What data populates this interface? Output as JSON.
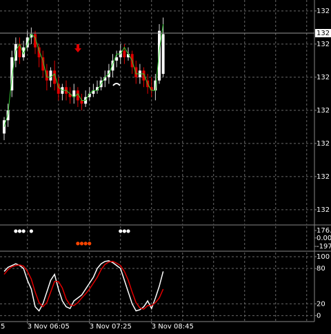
{
  "chart_data": [
    {
      "type": "candlestick",
      "ylim": [
        132.056,
        132.733
      ],
      "yticks": [
        {
          "value": 132.7,
          "label": "132"
        },
        {
          "value": 132.6,
          "label": "132"
        },
        {
          "value": 132.5,
          "label": "132"
        },
        {
          "value": 132.4,
          "label": "132"
        },
        {
          "value": 132.3,
          "label": "132"
        },
        {
          "value": 132.2,
          "label": "132"
        },
        {
          "value": 132.1,
          "label": "132"
        }
      ],
      "last_price": {
        "value": 132.633,
        "label": "132"
      },
      "xticks": [
        {
          "value": -10,
          "label": "5"
        },
        {
          "value": 6,
          "label": "3 Nov 06:05"
        },
        {
          "value": 22,
          "label": "3 Nov 07:25"
        },
        {
          "value": 38,
          "label": "3 Nov 08:45"
        }
      ],
      "grid": true,
      "up_color": "#ffffff",
      "down_color": "#e00000",
      "open": [
        132.33,
        132.37,
        132.46,
        132.55,
        132.6,
        132.56,
        132.59,
        132.62,
        132.63,
        132.59,
        132.56,
        132.52,
        132.49,
        132.52,
        132.48,
        132.45,
        132.47,
        132.45,
        132.44,
        132.46,
        132.43,
        132.42,
        132.44,
        132.45,
        132.46,
        132.47,
        132.49,
        132.5,
        132.52,
        132.55,
        132.56,
        132.58,
        132.56,
        132.57,
        132.53,
        132.5,
        132.52,
        132.49,
        132.47,
        132.46,
        132.49,
        132.51
      ],
      "high": [
        132.38,
        132.42,
        132.58,
        132.62,
        132.62,
        132.61,
        132.64,
        132.65,
        132.64,
        132.6,
        132.58,
        132.54,
        132.53,
        132.55,
        132.5,
        132.48,
        132.49,
        132.47,
        132.48,
        132.47,
        132.45,
        132.46,
        132.47,
        132.48,
        132.49,
        132.5,
        132.52,
        132.54,
        132.57,
        132.58,
        132.6,
        132.6,
        132.59,
        132.58,
        132.55,
        132.54,
        132.53,
        132.51,
        132.5,
        132.51,
        132.66,
        132.68
      ],
      "low": [
        132.31,
        132.35,
        132.44,
        132.53,
        132.54,
        132.55,
        132.58,
        132.6,
        132.57,
        132.53,
        132.5,
        132.46,
        132.47,
        132.46,
        132.43,
        132.43,
        132.43,
        132.42,
        132.42,
        132.41,
        132.4,
        132.41,
        132.43,
        132.44,
        132.45,
        132.46,
        132.47,
        132.48,
        132.5,
        132.53,
        132.54,
        132.54,
        132.55,
        132.51,
        132.48,
        132.48,
        132.47,
        132.45,
        132.44,
        132.43,
        132.48,
        132.5
      ],
      "close": [
        132.37,
        132.4,
        132.56,
        132.6,
        132.56,
        132.59,
        132.62,
        132.63,
        132.59,
        132.56,
        132.52,
        132.49,
        132.52,
        132.48,
        132.45,
        132.47,
        132.45,
        132.44,
        132.46,
        132.43,
        132.42,
        132.44,
        132.45,
        132.46,
        132.47,
        132.49,
        132.5,
        132.52,
        132.55,
        132.56,
        132.58,
        132.56,
        132.57,
        132.53,
        132.5,
        132.52,
        132.49,
        132.47,
        132.46,
        132.49,
        132.64,
        132.63
      ],
      "overlay": {
        "color": "#33cc33",
        "values": [
          132.35,
          132.39,
          132.5,
          132.58,
          132.6,
          132.57,
          132.6,
          132.63,
          132.62,
          132.58,
          132.55,
          132.5,
          132.5,
          132.51,
          132.47,
          132.46,
          132.46,
          132.45,
          132.44,
          132.45,
          132.43,
          132.43,
          132.45,
          132.46,
          132.46,
          132.48,
          132.5,
          132.51,
          132.54,
          132.57,
          132.57,
          132.59,
          132.57,
          132.55,
          132.51,
          132.51,
          132.51,
          132.48,
          132.46,
          132.46,
          132.58,
          132.66
        ]
      }
    },
    {
      "type": "scatter",
      "ylim": [
        -278,
        273
      ],
      "yticks": [
        {
          "value": 176,
          "label": "176."
        },
        {
          "value": 0,
          "label": "0.00"
        },
        -197
      ],
      "series": [
        {
          "color": "#ffffff",
          "x": [
            3,
            4,
            5,
            7,
            30,
            31,
            32
          ],
          "values": [
            160,
            160,
            160,
            160,
            160,
            160,
            160
          ]
        },
        {
          "color": "#ff4500",
          "x": [
            19,
            20,
            21,
            22
          ],
          "values": [
            -130,
            -130,
            -130,
            -130
          ]
        }
      ]
    },
    {
      "type": "line",
      "ylim": [
        -9,
        107
      ],
      "yticks": [
        100,
        80,
        20,
        0
      ],
      "grid": true,
      "series": [
        {
          "color": "#ffffff",
          "values": [
            75,
            82,
            85,
            88,
            85,
            80,
            60,
            45,
            15,
            8,
            20,
            40,
            60,
            70,
            45,
            25,
            15,
            12,
            25,
            30,
            35,
            45,
            55,
            65,
            80,
            88,
            92,
            93,
            90,
            85,
            80,
            60,
            40,
            20,
            8,
            10,
            15,
            25,
            12,
            30,
            50,
            75
          ]
        },
        {
          "color": "#e00000",
          "values": [
            70,
            78,
            83,
            85,
            86,
            84,
            75,
            62,
            40,
            22,
            15,
            22,
            40,
            58,
            58,
            47,
            28,
            18,
            17,
            22,
            30,
            37,
            45,
            55,
            65,
            78,
            87,
            91,
            92,
            89,
            85,
            75,
            60,
            40,
            22,
            13,
            11,
            17,
            17,
            22,
            30,
            45
          ]
        }
      ]
    }
  ]
}
